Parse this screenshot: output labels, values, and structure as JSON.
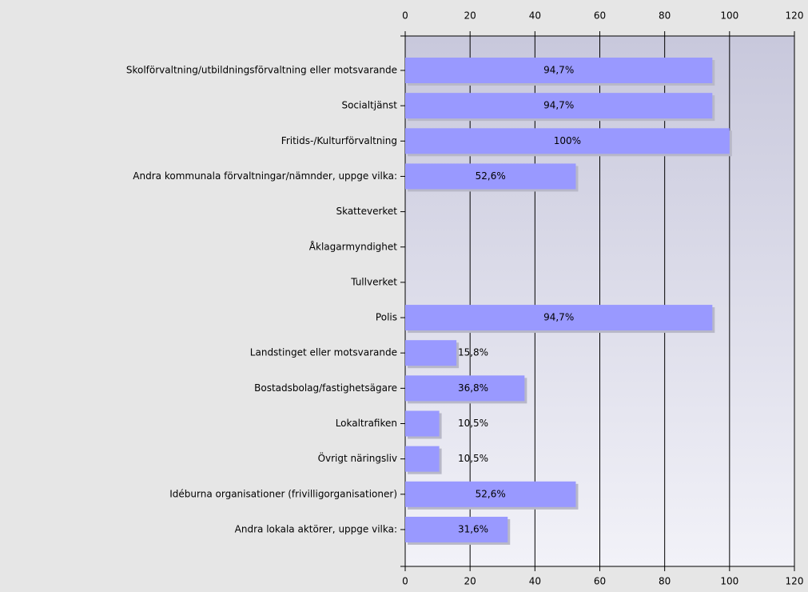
{
  "chart_data": {
    "type": "bar",
    "orientation": "horizontal",
    "categories": [
      "Skolförvaltning/utbildningsförvaltning eller motsvarande",
      "Socialtjänst",
      "Fritids-/Kulturförvaltning",
      "Andra kommunala förvaltningar/nämnder, uppge vilka:",
      "Skatteverket",
      "Åklagarmyndighet",
      "Tullverket",
      "Polis",
      "Landstinget eller motsvarande",
      "Bostadsbolag/fastighetsägare",
      "Lokaltrafiken",
      "Övrigt näringsliv",
      "Idéburna organisationer (frivilligorganisationer)",
      "Andra lokala aktörer, uppge vilka:"
    ],
    "values": [
      94.7,
      94.7,
      100,
      52.6,
      0,
      0,
      0,
      94.7,
      15.8,
      36.8,
      10.5,
      10.5,
      52.6,
      31.6
    ],
    "value_labels": [
      "94,7%",
      "94,7%",
      "100%",
      "52,6%",
      null,
      null,
      null,
      "94,7%",
      "15,8%",
      "36,8%",
      "10,5%",
      "10,5%",
      "52,6%",
      "31,6%"
    ],
    "color": "#9999ff",
    "xlim": [
      0,
      120
    ],
    "xticks": [
      0,
      20,
      40,
      60,
      80,
      100,
      120
    ],
    "grid": true
  }
}
